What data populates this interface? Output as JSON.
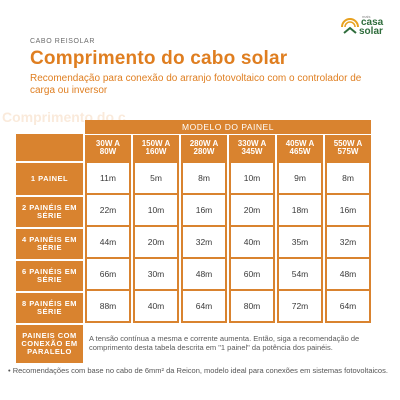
{
  "brand": {
    "tag": "CABO REISOLAR"
  },
  "logo": {
    "small": "mais",
    "line1": "casa",
    "line2": "solar"
  },
  "title": "Comprimento do cabo solar",
  "subtitle": "Recomendação para conexão do arranjo fotovoltaico com o controlador de carga ou inversor",
  "watermark": "Comprimento do c",
  "table": {
    "group_header": "MODELO DO PAINEL",
    "columns": [
      {
        "l1": "30W A",
        "l2": "80W"
      },
      {
        "l1": "150W A",
        "l2": "160W"
      },
      {
        "l1": "280W A",
        "l2": "280W"
      },
      {
        "l1": "330W A",
        "l2": "345W"
      },
      {
        "l1": "405W A",
        "l2": "465W"
      },
      {
        "l1": "550W A",
        "l2": "575W"
      }
    ],
    "rows": [
      {
        "l1": "1 PAINEL",
        "l2": "",
        "values": [
          "11m",
          "5m",
          "8m",
          "10m",
          "9m",
          "8m"
        ]
      },
      {
        "l1": "2 PAINÉIS EM",
        "l2": "SÉRIE",
        "values": [
          "22m",
          "10m",
          "16m",
          "20m",
          "18m",
          "16m"
        ]
      },
      {
        "l1": "4 PAINÉIS EM",
        "l2": "SÉRIE",
        "values": [
          "44m",
          "20m",
          "32m",
          "40m",
          "35m",
          "32m"
        ]
      },
      {
        "l1": "6 PAINÉIS EM",
        "l2": "SÉRIE",
        "values": [
          "66m",
          "30m",
          "48m",
          "60m",
          "54m",
          "48m"
        ]
      },
      {
        "l1": "8 PAINÉIS EM",
        "l2": "SÉRIE",
        "values": [
          "88m",
          "40m",
          "64m",
          "80m",
          "72m",
          "64m"
        ]
      }
    ],
    "parallel_label": {
      "l1": "PAINEIS COM",
      "l2": "CONEXÃO EM",
      "l3": "PARALELO"
    },
    "parallel_note": "A tensão contínua a mesma e corrente aumenta. Então, siga a recomendação de comprimento desta tabela descrita em \"1 painel\" da potência dos painéis."
  },
  "footnote": "• Recomendações com base no cabo de 6mm² da Reicon, modelo ideal para conexões em sistemas fotovoltaicos."
}
